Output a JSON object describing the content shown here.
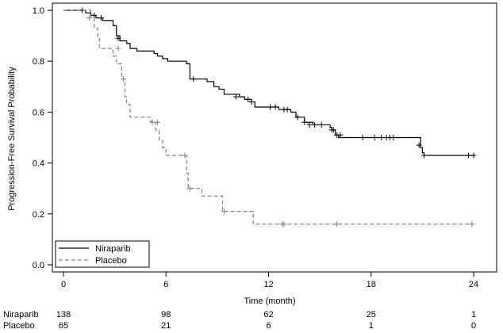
{
  "chart_data": {
    "type": "line",
    "xlabel": "Time (month)",
    "ylabel": "Progression-Free Survival Probability",
    "xlim": [
      0,
      24
    ],
    "ylim": [
      0,
      1
    ],
    "xticks": [
      0,
      6,
      12,
      18,
      24
    ],
    "xtick_labels": [
      "0",
      "6",
      "12",
      "18",
      "24"
    ],
    "yticks": [
      0,
      0.2,
      0.4,
      0.6,
      0.8,
      1.0
    ],
    "ytick_labels": [
      "0.0",
      "0.2",
      "0.4",
      "0.6",
      "0.8",
      "1.0"
    ],
    "legend": {
      "placement": "bottom-left",
      "entries": [
        "Niraparib",
        "Placebo"
      ]
    },
    "series": [
      {
        "name": "Niraparib",
        "style": "solid",
        "color": "#000000",
        "steps": [
          [
            0,
            1.0
          ],
          [
            1.3,
            0.99
          ],
          [
            1.6,
            0.98
          ],
          [
            1.9,
            0.97
          ],
          [
            2.3,
            0.96
          ],
          [
            2.9,
            0.94
          ],
          [
            3.1,
            0.9
          ],
          [
            3.3,
            0.88
          ],
          [
            3.7,
            0.87
          ],
          [
            3.9,
            0.85
          ],
          [
            4.3,
            0.84
          ],
          [
            5.3,
            0.83
          ],
          [
            5.5,
            0.82
          ],
          [
            5.8,
            0.81
          ],
          [
            6.1,
            0.8
          ],
          [
            7.2,
            0.79
          ],
          [
            7.4,
            0.73
          ],
          [
            7.6,
            0.73
          ],
          [
            8.4,
            0.72
          ],
          [
            8.8,
            0.7
          ],
          [
            9.1,
            0.69
          ],
          [
            9.4,
            0.67
          ],
          [
            10.3,
            0.66
          ],
          [
            10.6,
            0.65
          ],
          [
            11.0,
            0.64
          ],
          [
            11.2,
            0.62
          ],
          [
            12.6,
            0.61
          ],
          [
            13.3,
            0.6
          ],
          [
            13.6,
            0.58
          ],
          [
            14.1,
            0.56
          ],
          [
            14.6,
            0.55
          ],
          [
            15.6,
            0.54
          ],
          [
            15.7,
            0.53
          ],
          [
            15.9,
            0.51
          ],
          [
            16.1,
            0.5
          ],
          [
            20.9,
            0.46
          ],
          [
            21.0,
            0.44
          ],
          [
            21.1,
            0.43
          ],
          [
            24.0,
            0.43
          ]
        ],
        "censored": [
          [
            1.1,
            1.0
          ],
          [
            1.8,
            0.98
          ],
          [
            2.2,
            0.97
          ],
          [
            3.2,
            0.89
          ],
          [
            7.6,
            0.73
          ],
          [
            10.1,
            0.66
          ],
          [
            10.8,
            0.65
          ],
          [
            11.0,
            0.64
          ],
          [
            12.1,
            0.62
          ],
          [
            12.4,
            0.62
          ],
          [
            12.9,
            0.61
          ],
          [
            13.1,
            0.61
          ],
          [
            13.7,
            0.58
          ],
          [
            14.1,
            0.56
          ],
          [
            14.4,
            0.55
          ],
          [
            14.7,
            0.55
          ],
          [
            15.1,
            0.55
          ],
          [
            15.7,
            0.53
          ],
          [
            15.8,
            0.53
          ],
          [
            16.0,
            0.51
          ],
          [
            16.2,
            0.51
          ],
          [
            17.5,
            0.5
          ],
          [
            18.2,
            0.5
          ],
          [
            18.6,
            0.5
          ],
          [
            18.9,
            0.5
          ],
          [
            19.1,
            0.5
          ],
          [
            19.3,
            0.5
          ],
          [
            20.8,
            0.47
          ],
          [
            21.1,
            0.43
          ],
          [
            23.7,
            0.43
          ],
          [
            24.0,
            0.43
          ]
        ]
      },
      {
        "name": "Placebo",
        "style": "dashed",
        "color": "#808080",
        "steps": [
          [
            0,
            1.0
          ],
          [
            1.6,
            0.97
          ],
          [
            1.8,
            0.93
          ],
          [
            2.0,
            0.89
          ],
          [
            2.1,
            0.85
          ],
          [
            2.9,
            0.82
          ],
          [
            3.1,
            0.79
          ],
          [
            3.4,
            0.73
          ],
          [
            3.6,
            0.66
          ],
          [
            3.7,
            0.63
          ],
          [
            3.9,
            0.58
          ],
          [
            5.1,
            0.56
          ],
          [
            5.4,
            0.53
          ],
          [
            5.6,
            0.49
          ],
          [
            5.8,
            0.46
          ],
          [
            6.0,
            0.43
          ],
          [
            7.2,
            0.36
          ],
          [
            7.3,
            0.3
          ],
          [
            7.5,
            0.3
          ],
          [
            8.1,
            0.27
          ],
          [
            9.3,
            0.21
          ],
          [
            11.1,
            0.16
          ],
          [
            24.0,
            0.16
          ]
        ],
        "censored": [
          [
            1.5,
            0.97
          ],
          [
            3.2,
            0.85
          ],
          [
            3.5,
            0.73
          ],
          [
            5.2,
            0.56
          ],
          [
            5.5,
            0.56
          ],
          [
            7.1,
            0.43
          ],
          [
            7.4,
            0.3
          ],
          [
            9.4,
            0.21
          ],
          [
            12.8,
            0.16
          ],
          [
            12.9,
            0.16
          ],
          [
            16.0,
            0.16
          ],
          [
            23.9,
            0.16
          ]
        ]
      }
    ],
    "risk_table": {
      "times": [
        0,
        6,
        12,
        18,
        24
      ],
      "rows": [
        {
          "label": "Niraparib",
          "counts": [
            "138",
            "98",
            "62",
            "25",
            "1"
          ]
        },
        {
          "label": "Placebo",
          "counts": [
            "65",
            "21",
            "6",
            "1",
            "0"
          ]
        }
      ]
    }
  }
}
